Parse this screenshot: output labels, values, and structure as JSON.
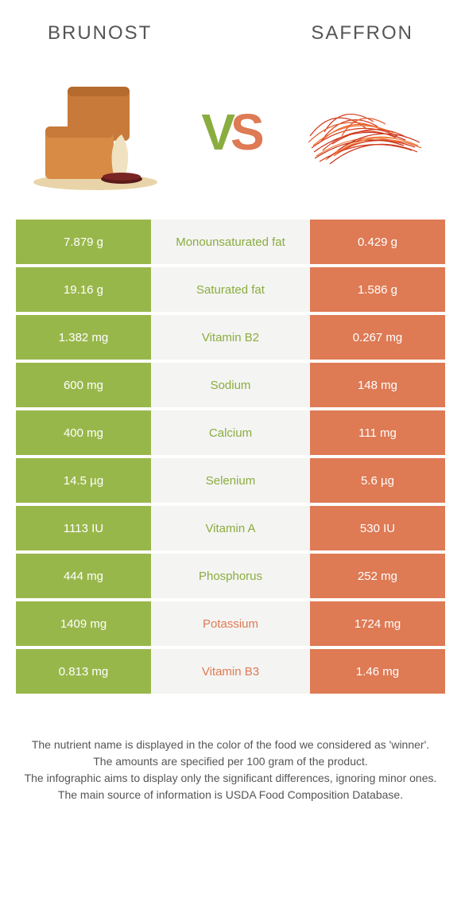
{
  "header": {
    "left_title": "Brunost",
    "right_title": "Saffron"
  },
  "vs": {
    "v": "V",
    "s": "S"
  },
  "colors": {
    "green": "#98b74b",
    "orange": "#de7a54",
    "mid_bg": "#f4f4f2",
    "text_green": "#8aad3f",
    "text_orange": "#de7a54"
  },
  "rows": [
    {
      "left": "7.879 g",
      "label": "Monounsaturated fat",
      "right": "0.429 g",
      "winner": "green"
    },
    {
      "left": "19.16 g",
      "label": "Saturated fat",
      "right": "1.586 g",
      "winner": "green"
    },
    {
      "left": "1.382 mg",
      "label": "Vitamin B2",
      "right": "0.267 mg",
      "winner": "green"
    },
    {
      "left": "600 mg",
      "label": "Sodium",
      "right": "148 mg",
      "winner": "green"
    },
    {
      "left": "400 mg",
      "label": "Calcium",
      "right": "111 mg",
      "winner": "green"
    },
    {
      "left": "14.5 µg",
      "label": "Selenium",
      "right": "5.6 µg",
      "winner": "green"
    },
    {
      "left": "1113 IU",
      "label": "Vitamin A",
      "right": "530 IU",
      "winner": "green"
    },
    {
      "left": "444 mg",
      "label": "Phosphorus",
      "right": "252 mg",
      "winner": "green"
    },
    {
      "left": "1409 mg",
      "label": "Potassium",
      "right": "1724 mg",
      "winner": "orange"
    },
    {
      "left": "0.813 mg",
      "label": "Vitamin B3",
      "right": "1.46 mg",
      "winner": "orange"
    }
  ],
  "footer": {
    "line1": "The nutrient name is displayed in the color of the food we considered as 'winner'.",
    "line2": "The amounts are specified per 100 gram of the product.",
    "line3": "The infographic aims to display only the significant differences, ignoring minor ones.",
    "line4": "The main source of information is USDA Food Composition Database."
  }
}
